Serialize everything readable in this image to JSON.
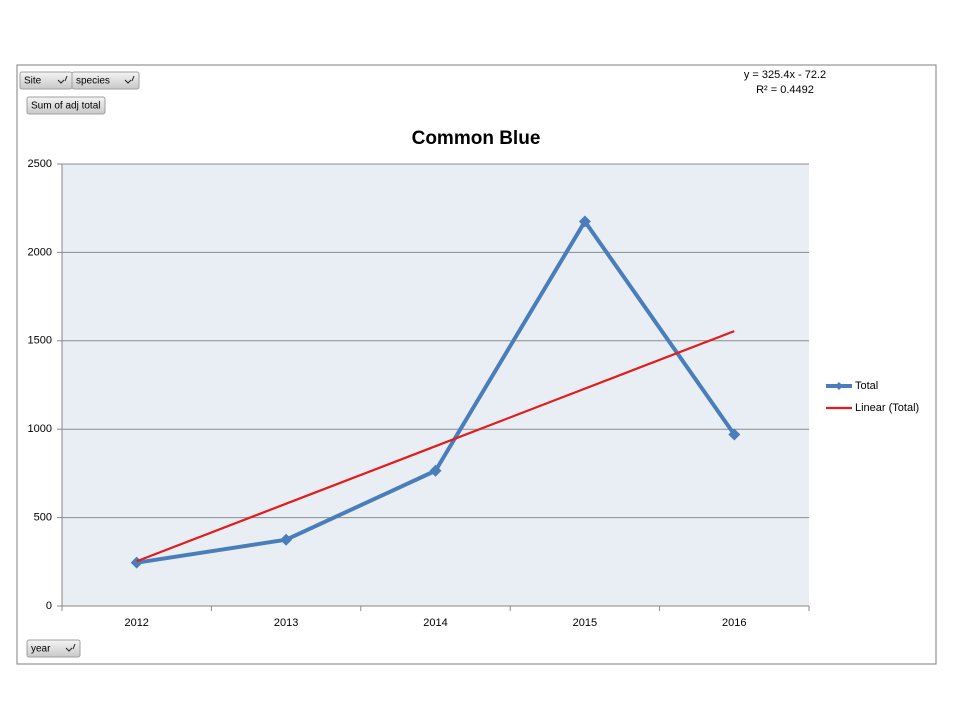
{
  "chart_data": {
    "type": "line",
    "title": "Common Blue",
    "categories": [
      "2012",
      "2013",
      "2014",
      "2015",
      "2016"
    ],
    "series": [
      {
        "name": "Total",
        "color": "#4a7ebb",
        "values": [
          245,
          375,
          765,
          2175,
          970
        ],
        "marker": "diamond"
      },
      {
        "name": "Linear (Total)",
        "color": "#e31b1b",
        "values": [
          253.2,
          578.6,
          904,
          1229.4,
          1554.8
        ]
      }
    ],
    "ylim": [
      0,
      2500
    ],
    "yticks": [
      0,
      500,
      1000,
      1500,
      2000,
      2500
    ],
    "grid": true,
    "legend": "right",
    "annotations": [
      "y = 325.4x - 72.2",
      "R² = 0.4492"
    ],
    "pivot_buttons": [
      "Site",
      "species",
      "Sum of adj total",
      "year"
    ]
  }
}
